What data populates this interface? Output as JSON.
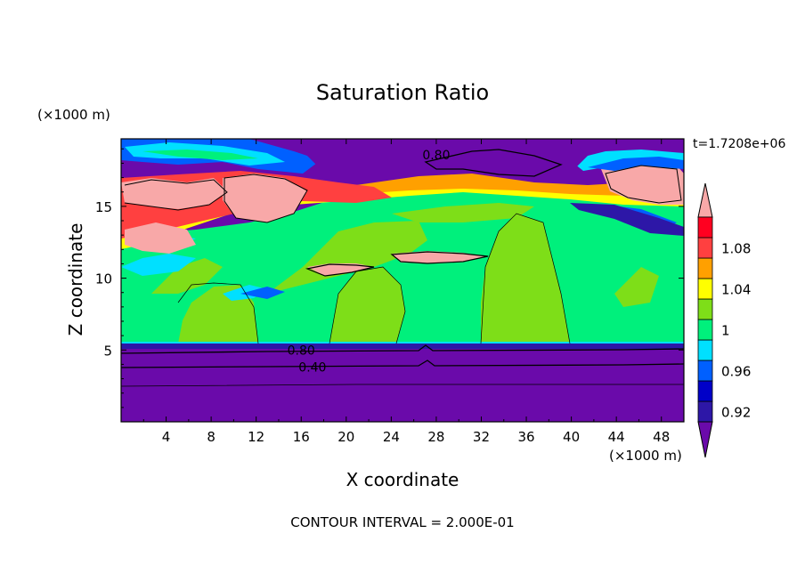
{
  "chart_data": {
    "type": "heatmap",
    "title": "Saturation Ratio",
    "xlabel": "X coordinate",
    "ylabel": "Z coordinate",
    "x_unit": "(×1000 m)",
    "y_unit": "(×1000 m)",
    "xlim": [
      0,
      50
    ],
    "ylim": [
      0,
      19.7
    ],
    "x_ticks": [
      4,
      8,
      12,
      16,
      20,
      24,
      28,
      32,
      36,
      40,
      44,
      48
    ],
    "y_ticks": [
      5,
      10,
      15
    ],
    "time_label": "t=1.7208e+06",
    "footer": "CONTOUR INTERVAL = 2.000E-01",
    "colorbar": {
      "levels": [
        0.92,
        0.94,
        0.96,
        0.98,
        1.0,
        1.02,
        1.04,
        1.06,
        1.08,
        1.1
      ],
      "tick_labels": [
        "0.92",
        "0.96",
        "1",
        "1.04",
        "1.08"
      ],
      "colors": [
        "#6a0aaa",
        "#2d17a7",
        "#0000c8",
        "#0060ff",
        "#00e0ff",
        "#00f07c",
        "#7ede18",
        "#ffff00",
        "#ffa000",
        "#ff4040",
        "#ff0020",
        "#f8a8a8"
      ]
    },
    "contour_labels": [
      {
        "text": "0.80",
        "x": 28,
        "z": 18.6
      },
      {
        "text": "0.80",
        "x": 16,
        "z": 5.0
      },
      {
        "text": "0.40",
        "x": 17,
        "z": 3.8
      }
    ],
    "regions": [
      {
        "value": "below 0.92",
        "color": "#6a0aaa",
        "z_range": [
          0,
          5.2
        ]
      },
      {
        "value": "0.98-1.0",
        "color": "#00f07c",
        "z_range": [
          5.5,
          14
        ]
      },
      {
        "value": "1.0-1.02",
        "color": "#7ede18",
        "z_range": [
          5.5,
          13
        ]
      },
      {
        "value": "above 1.10",
        "color": "#f8a8a8",
        "z_range": [
          12,
          18
        ]
      },
      {
        "value": "below 0.92",
        "color": "#6a0aaa",
        "z_range": [
          17,
          19.7
        ]
      }
    ]
  }
}
